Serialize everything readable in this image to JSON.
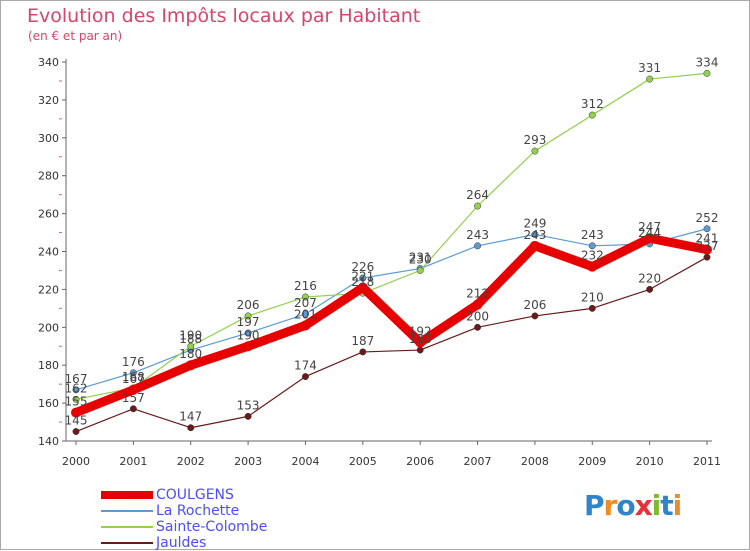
{
  "chart_data": {
    "type": "line",
    "title": "Evolution des Impôts locaux par Habitant",
    "subtitle": "(en € et par an)",
    "x": [
      "2000",
      "2001",
      "2002",
      "2003",
      "2004",
      "2005",
      "2006",
      "2007",
      "2008",
      "2009",
      "2010",
      "2011"
    ],
    "ylim": [
      140,
      340
    ],
    "yticks": [
      140,
      160,
      180,
      200,
      220,
      240,
      260,
      280,
      300,
      320,
      340
    ],
    "grid": false,
    "legend_position": "bottom-left",
    "series": [
      {
        "name": "COULGENS",
        "color": "#e60000",
        "values": [
          155,
          167,
          180,
          190,
          201,
          221,
          192,
          212,
          243,
          232,
          247,
          241
        ]
      },
      {
        "name": "La Rochette",
        "color": "#5b9bd5",
        "values": [
          167,
          176,
          188,
          197,
          207,
          226,
          231,
          243,
          249,
          243,
          244,
          252
        ]
      },
      {
        "name": "Sainte-Colombe",
        "color": "#92d050",
        "values": [
          162,
          168,
          190,
          206,
          216,
          218,
          230,
          264,
          293,
          312,
          331,
          334
        ]
      },
      {
        "name": "Jauldes",
        "color": "#6b1a1a",
        "values": [
          145,
          157,
          147,
          153,
          174,
          187,
          188,
          200,
          206,
          210,
          220,
          237
        ]
      }
    ]
  },
  "legend_text_color": "#4d4dff",
  "logo": {
    "text": "Proxiti",
    "letter_colors": [
      "#2e86c9",
      "#f08a24",
      "#2e86c9",
      "#e8303a",
      "#7dbb2a",
      "#2e86c9",
      "#f08a24"
    ]
  }
}
